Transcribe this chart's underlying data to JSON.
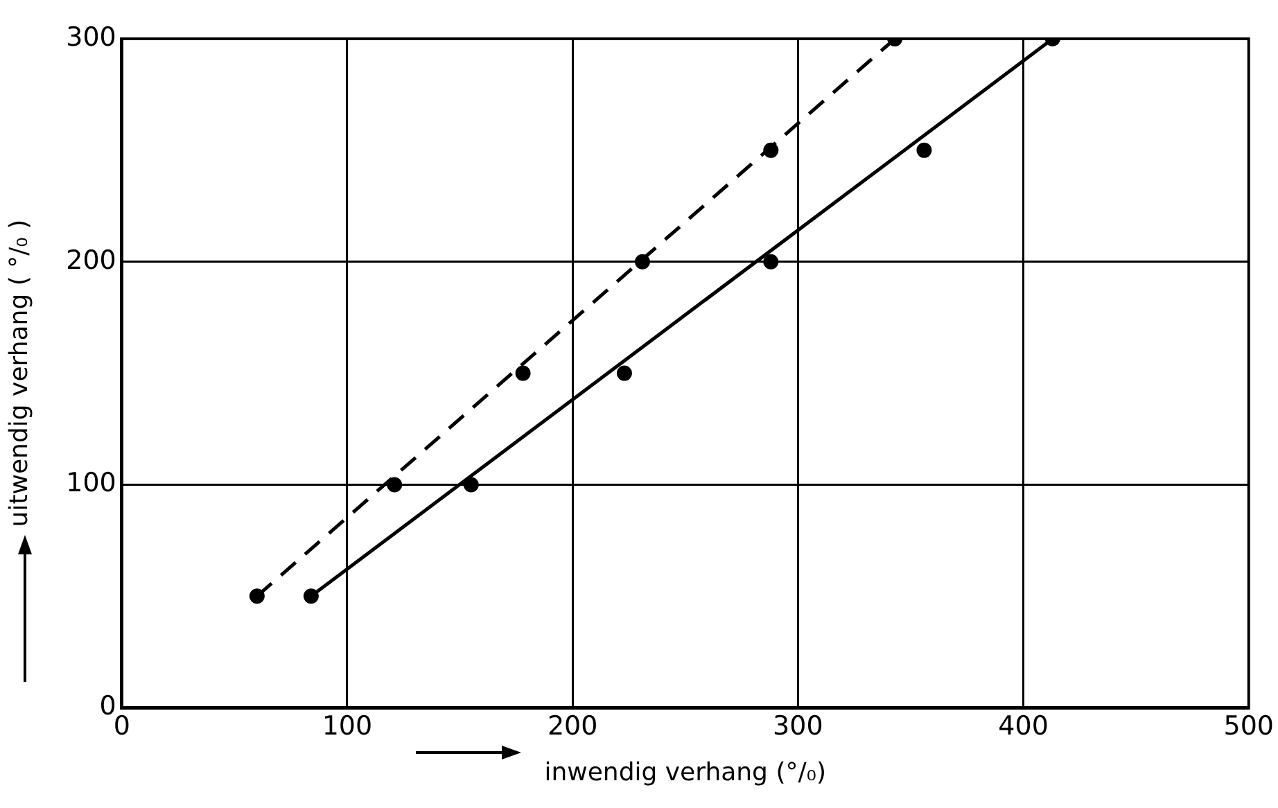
{
  "chart_data": {
    "type": "scatter",
    "xlabel": "inwendig verhang (°/₀)",
    "ylabel": "uitwendig verhang ( °/₀ )",
    "xlim": [
      0,
      500
    ],
    "ylim": [
      0,
      300
    ],
    "xticks": [
      0,
      100,
      200,
      300,
      400,
      500
    ],
    "yticks": [
      0,
      100,
      200,
      300
    ],
    "grid": true,
    "series": [
      {
        "type": "scatter",
        "marker": "circle",
        "color": "#000000",
        "x": [
          60,
          121,
          178,
          231,
          288,
          343
        ],
        "values": [
          50,
          100,
          150,
          200,
          250,
          300
        ]
      },
      {
        "type": "scatter",
        "marker": "circle",
        "color": "#000000",
        "x": [
          84,
          155,
          223,
          288,
          356,
          413
        ],
        "values": [
          50,
          100,
          150,
          200,
          250,
          300
        ]
      },
      {
        "type": "line",
        "marker": "none",
        "line_style": "dashed",
        "color": "#000000",
        "x": [
          60,
          343
        ],
        "values": [
          50,
          300
        ]
      },
      {
        "type": "line",
        "marker": "none",
        "line_style": "solid",
        "color": "#000000",
        "x": [
          84,
          413
        ],
        "values": [
          50,
          300
        ]
      }
    ]
  }
}
